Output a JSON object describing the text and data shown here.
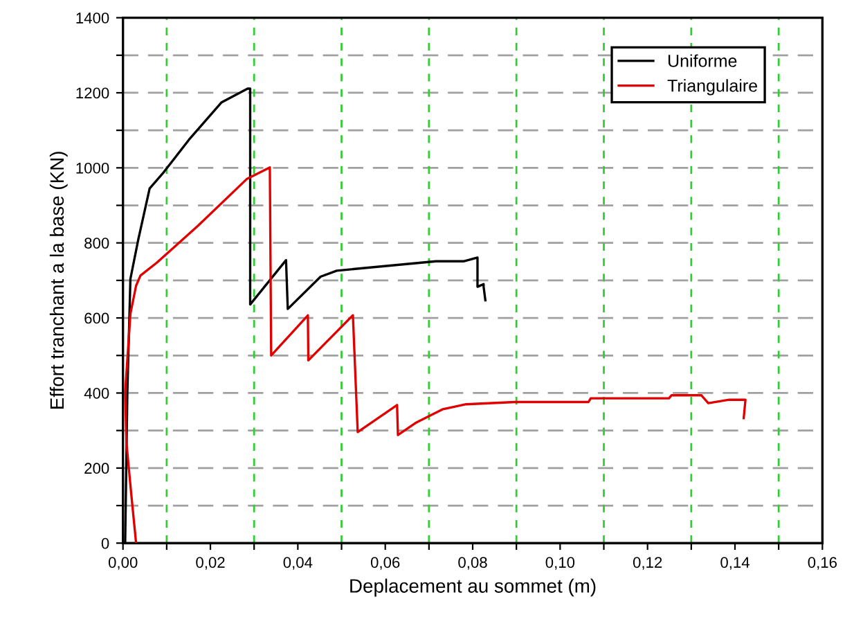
{
  "chart_data": {
    "type": "line",
    "xlabel": "Deplacement au sommet (m)",
    "ylabel": "Effort tranchant a la base (KN)",
    "series": [
      {
        "name": "Uniforme",
        "color": "#000000",
        "x": [
          0.0005,
          0.001,
          0.0017,
          0.0035,
          0.0061,
          0.0093,
          0.0151,
          0.0225,
          0.0285,
          0.0291,
          0.0291,
          0.0373,
          0.0377,
          0.0452,
          0.0489,
          0.0716,
          0.0779,
          0.0811,
          0.0811,
          0.0825,
          0.0825,
          0.0829
        ],
        "values": [
          0,
          401,
          704,
          809,
          945,
          988,
          1075,
          1174,
          1211,
          1211,
          636,
          754,
          624,
          710,
          726,
          751,
          751,
          761,
          683,
          690,
          683,
          647
        ]
      },
      {
        "name": "Triangulaire",
        "color": "#e00000",
        "x": [
          0.003,
          0.0019,
          0.0008,
          0.0005,
          0.0017,
          0.003,
          0.004,
          0.0077,
          0.0172,
          0.0283,
          0.0336,
          0.0339,
          0.0423,
          0.0424,
          0.0526,
          0.0537,
          0.0627,
          0.0629,
          0.0669,
          0.0732,
          0.0785,
          0.0896,
          0.1065,
          0.107,
          0.1249,
          0.1255,
          0.1323,
          0.1339,
          0.1387,
          0.1424,
          0.142
        ],
        "values": [
          0,
          130,
          266,
          401,
          611,
          686,
          713,
          747,
          846,
          970,
          1001,
          500,
          607,
          487,
          607,
          296,
          368,
          288,
          320,
          357,
          370,
          376,
          376,
          386,
          386,
          394,
          394,
          373,
          382,
          382,
          333
        ]
      }
    ],
    "xlim": [
      0,
      0.16
    ],
    "ylim": [
      0,
      1400
    ],
    "xticks": [
      {
        "value": 0,
        "label": "0,00"
      },
      {
        "value": 0.01,
        "label": null
      },
      {
        "value": 0.02,
        "label": "0,02"
      },
      {
        "value": 0.03,
        "label": null
      },
      {
        "value": 0.04,
        "label": "0,04"
      },
      {
        "value": 0.05,
        "label": null
      },
      {
        "value": 0.06,
        "label": "0,06"
      },
      {
        "value": 0.07,
        "label": null
      },
      {
        "value": 0.08,
        "label": "0,08"
      },
      {
        "value": 0.09,
        "label": null
      },
      {
        "value": 0.1,
        "label": "0,10"
      },
      {
        "value": 0.11,
        "label": null
      },
      {
        "value": 0.12,
        "label": "0,12"
      },
      {
        "value": 0.13,
        "label": null
      },
      {
        "value": 0.14,
        "label": "0,14"
      },
      {
        "value": 0.15,
        "label": null
      },
      {
        "value": 0.16,
        "label": "0,16"
      }
    ],
    "yticks": [
      0,
      {
        "value": 100,
        "label": null
      },
      200,
      {
        "value": 300,
        "label": null
      },
      400,
      {
        "value": 500,
        "label": null
      },
      600,
      {
        "value": 700,
        "label": null
      },
      800,
      {
        "value": 900,
        "label": null
      },
      1000,
      {
        "value": 1100,
        "label": null
      },
      1200,
      {
        "value": 1300,
        "label": null
      },
      1400
    ],
    "grid": true,
    "legend": "top right",
    "marker": "none",
    "line_style": "solid"
  }
}
